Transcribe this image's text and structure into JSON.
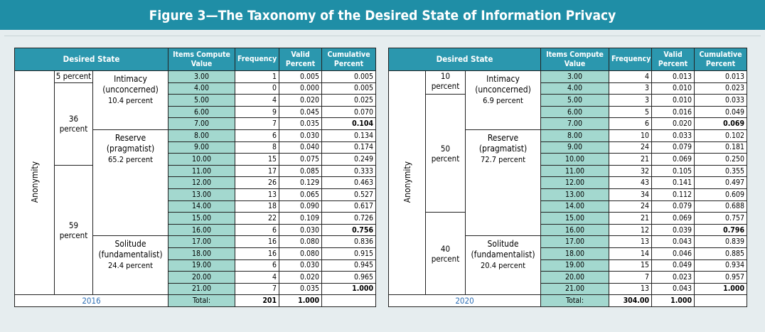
{
  "title": "Figure  3—The Taxonomy of the Desired State of Information Privacy",
  "tables": [
    {
      "header": [
        "Desired State",
        "Items Compute Value",
        "Frequency",
        "Valid Percent",
        "Cumulative Percent"
      ],
      "side_label": "Anonymity",
      "shares": [
        "5 percent",
        "36 percent",
        "59 percent"
      ],
      "personas": [
        {
          "name": "Intimacy",
          "kind": "(unconcerned)",
          "share": "10.4 percent"
        },
        {
          "name": "Reserve",
          "kind": "(pragmatist)",
          "share": "65.2 percent"
        },
        {
          "name": "Solitude",
          "kind": "(fundamentalist)",
          "share": "24.4 percent"
        }
      ],
      "rows": [
        [
          "3.00",
          "1",
          "0.005",
          "0.005"
        ],
        [
          "4.00",
          "0",
          "0.000",
          "0.005"
        ],
        [
          "5.00",
          "4",
          "0.020",
          "0.025"
        ],
        [
          "6.00",
          "9",
          "0.045",
          "0.070"
        ],
        [
          "7.00",
          "7",
          "0.035",
          "0.104"
        ],
        [
          "8.00",
          "6",
          "0.030",
          "0.134"
        ],
        [
          "9.00",
          "8",
          "0.040",
          "0.174"
        ],
        [
          "10.00",
          "15",
          "0.075",
          "0.249"
        ],
        [
          "11.00",
          "17",
          "0.085",
          "0.333"
        ],
        [
          "12.00",
          "26",
          "0.129",
          "0.463"
        ],
        [
          "13.00",
          "13",
          "0.065",
          "0.527"
        ],
        [
          "14.00",
          "18",
          "0.090",
          "0.617"
        ],
        [
          "15.00",
          "22",
          "0.109",
          "0.726"
        ],
        [
          "16.00",
          "6",
          "0.030",
          "0.756"
        ],
        [
          "17.00",
          "16",
          "0.080",
          "0.836"
        ],
        [
          "18.00",
          "16",
          "0.080",
          "0.915"
        ],
        [
          "19.00",
          "6",
          "0.030",
          "0.945"
        ],
        [
          "20.00",
          "4",
          "0.020",
          "0.965"
        ],
        [
          "21.00",
          "7",
          "0.035",
          "1.000"
        ]
      ],
      "footer": {
        "year": "2016",
        "total_label": "Total:",
        "frequency": "201",
        "valid": "1.000"
      }
    },
    {
      "header": [
        "Desired State",
        "Items Compute Value",
        "Frequency",
        "Valid Percent",
        "Cumulative Percent"
      ],
      "side_label": "Anonymity",
      "shares": [
        "10 percent",
        "50 percent",
        "40 percent"
      ],
      "personas": [
        {
          "name": "Intimacy",
          "kind": "(unconcerned)",
          "share": "6.9 percent"
        },
        {
          "name": "Reserve",
          "kind": "(pragmatist)",
          "share": "72.7 percent"
        },
        {
          "name": "Solitude",
          "kind": "(fundamentalist)",
          "share": "20.4 percent"
        }
      ],
      "rows": [
        [
          "3.00",
          "4",
          "0.013",
          "0.013"
        ],
        [
          "4.00",
          "3",
          "0.010",
          "0.023"
        ],
        [
          "5.00",
          "3",
          "0.010",
          "0.033"
        ],
        [
          "6.00",
          "5",
          "0.016",
          "0.049"
        ],
        [
          "7.00",
          "6",
          "0.020",
          "0.069"
        ],
        [
          "8.00",
          "10",
          "0.033",
          "0.102"
        ],
        [
          "9.00",
          "24",
          "0.079",
          "0.181"
        ],
        [
          "10.00",
          "21",
          "0.069",
          "0.250"
        ],
        [
          "11.00",
          "32",
          "0.105",
          "0.355"
        ],
        [
          "12.00",
          "43",
          "0.141",
          "0.497"
        ],
        [
          "13.00",
          "34",
          "0.112",
          "0.609"
        ],
        [
          "14.00",
          "24",
          "0.079",
          "0.688"
        ],
        [
          "15.00",
          "21",
          "0.069",
          "0.757"
        ],
        [
          "16.00",
          "12",
          "0.039",
          "0.796"
        ],
        [
          "17.00",
          "13",
          "0.043",
          "0.839"
        ],
        [
          "18.00",
          "14",
          "0.046",
          "0.885"
        ],
        [
          "19.00",
          "15",
          "0.049",
          "0.934"
        ],
        [
          "20.00",
          "7",
          "0.023",
          "0.957"
        ],
        [
          "21.00",
          "13",
          "0.043",
          "1.000"
        ]
      ],
      "footer": {
        "year": "2020",
        "total_label": "Total:",
        "frequency": "304.00",
        "valid": "1.000"
      }
    }
  ]
}
